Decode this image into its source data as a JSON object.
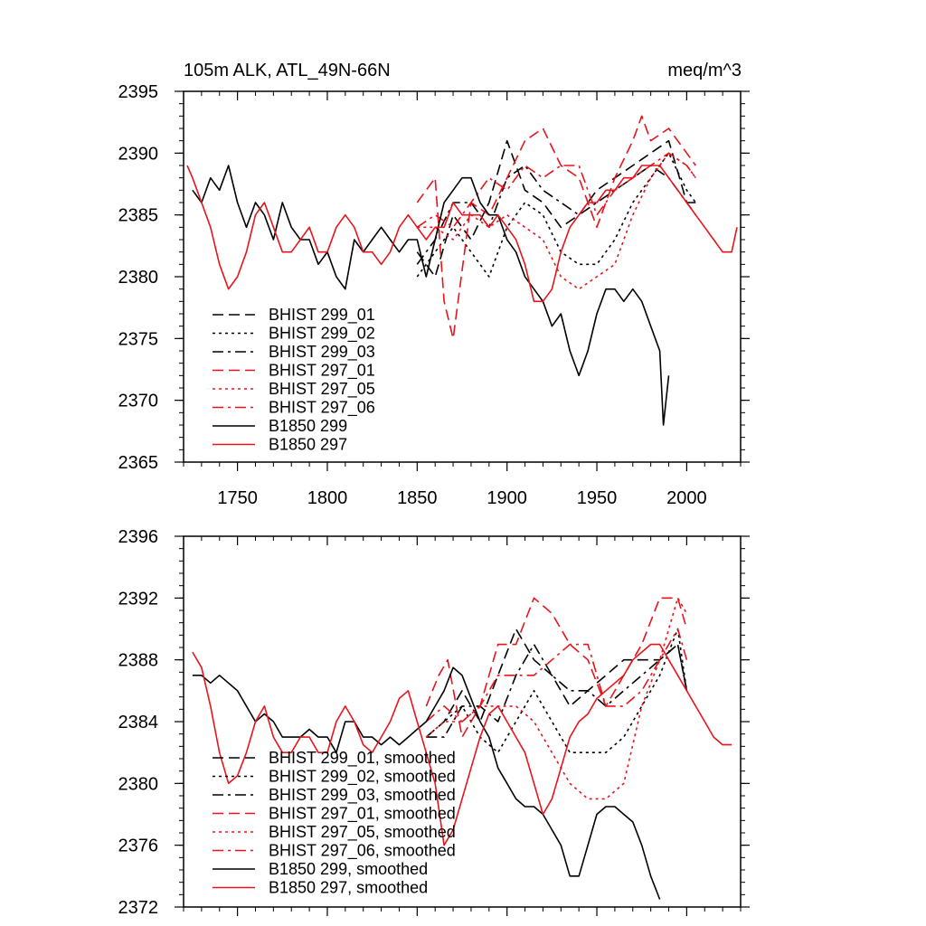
{
  "colors": {
    "black_series": "#000000",
    "red_series": "#e8141c"
  },
  "chart_data": [
    {
      "type": "line",
      "title": "105m ALK, ATL_49N-66N",
      "units": "meq/m^3",
      "xlim": [
        1720,
        2030
      ],
      "ylim": [
        2365,
        2395
      ],
      "x_ticks": [
        1750,
        1800,
        1850,
        1900,
        1950,
        2000
      ],
      "y_ticks": [
        2365,
        2370,
        2375,
        2380,
        2385,
        2390,
        2395
      ],
      "tick_labels_x": [
        "1750",
        "1800",
        "1850",
        "1900",
        "1950",
        "2000"
      ],
      "tick_labels_y": [
        "2365",
        "2370",
        "2375",
        "2380",
        "2385",
        "2390",
        "2395"
      ],
      "legend_position": "lower-left",
      "series": [
        {
          "name": "BHIST 299_01",
          "color": "black",
          "dash": "dash",
          "x": [
            1850,
            1860,
            1870,
            1880,
            1890,
            1900,
            1910,
            1920,
            1930,
            1940,
            1950,
            1960,
            1970,
            1980,
            1990,
            2000,
            2005
          ],
          "y": [
            2382,
            2380,
            2385,
            2383,
            2386,
            2391,
            2387,
            2386,
            2384,
            2385,
            2387,
            2388,
            2389,
            2390,
            2391,
            2386,
            2385
          ]
        },
        {
          "name": "BHIST 299_02",
          "color": "black",
          "dash": "dot",
          "x": [
            1850,
            1860,
            1870,
            1880,
            1890,
            1900,
            1910,
            1920,
            1930,
            1940,
            1950,
            1960,
            1970,
            1980,
            1990,
            2000,
            2005
          ],
          "y": [
            2380,
            2382,
            2384,
            2382,
            2380,
            2384,
            2386,
            2385,
            2382,
            2381,
            2381,
            2383,
            2386,
            2388,
            2390,
            2387,
            2386
          ]
        },
        {
          "name": "BHIST 299_03",
          "color": "black",
          "dash": "dashdot",
          "x": [
            1850,
            1860,
            1870,
            1880,
            1890,
            1900,
            1910,
            1920,
            1930,
            1940,
            1950,
            1960,
            1970,
            1980,
            1990,
            2000,
            2005
          ],
          "y": [
            2381,
            2383,
            2386,
            2386,
            2384,
            2388,
            2389,
            2387,
            2386,
            2385,
            2386,
            2387,
            2388,
            2389,
            2388,
            2386,
            2386
          ]
        },
        {
          "name": "BHIST 297_01",
          "color": "red",
          "dash": "dash",
          "x": [
            1850,
            1860,
            1865,
            1870,
            1880,
            1890,
            1900,
            1910,
            1920,
            1930,
            1940,
            1950,
            1960,
            1970,
            1975,
            1980,
            1990,
            2000,
            2005
          ],
          "y": [
            2386,
            2388,
            2378,
            2375,
            2386,
            2385,
            2388,
            2391,
            2392,
            2389,
            2388,
            2384,
            2388,
            2391,
            2393,
            2391,
            2392,
            2390,
            2389
          ]
        },
        {
          "name": "BHIST 297_05",
          "color": "red",
          "dash": "dot",
          "x": [
            1850,
            1860,
            1870,
            1880,
            1890,
            1900,
            1910,
            1920,
            1930,
            1940,
            1950,
            1960,
            1970,
            1980,
            1990,
            2000,
            2005
          ],
          "y": [
            2384,
            2384,
            2383,
            2385,
            2384,
            2385,
            2384,
            2383,
            2380,
            2379,
            2380,
            2381,
            2385,
            2388,
            2390,
            2389,
            2388
          ]
        },
        {
          "name": "BHIST 297_06",
          "color": "red",
          "dash": "dashdot",
          "x": [
            1850,
            1860,
            1870,
            1880,
            1890,
            1900,
            1910,
            1920,
            1930,
            1940,
            1950,
            1960,
            1970,
            1980,
            1990,
            2000,
            2005
          ],
          "y": [
            2384,
            2385,
            2384,
            2386,
            2388,
            2387,
            2389,
            2388,
            2389,
            2389,
            2385,
            2387,
            2388,
            2389,
            2390,
            2389,
            2388
          ]
        },
        {
          "name": "B1850 299",
          "color": "black",
          "dash": "solid",
          "x": [
            1725,
            1730,
            1735,
            1740,
            1745,
            1750,
            1755,
            1760,
            1765,
            1770,
            1775,
            1780,
            1785,
            1790,
            1795,
            1800,
            1805,
            1810,
            1815,
            1820,
            1825,
            1830,
            1835,
            1840,
            1845,
            1850,
            1855,
            1860,
            1865,
            1870,
            1875,
            1880,
            1885,
            1890,
            1895,
            1900,
            1905,
            1910,
            1915,
            1920,
            1925,
            1930,
            1935,
            1940,
            1945,
            1950,
            1955,
            1960,
            1965,
            1970,
            1975,
            1980,
            1985,
            1987,
            1990
          ],
          "y": [
            2387,
            2386,
            2388,
            2387,
            2389,
            2386,
            2384,
            2386,
            2385,
            2383,
            2386,
            2384,
            2383,
            2383,
            2381,
            2382,
            2380,
            2379,
            2383,
            2382,
            2383,
            2384,
            2383,
            2382,
            2383,
            2383,
            2380,
            2383,
            2386,
            2387,
            2388,
            2388,
            2386,
            2385,
            2385,
            2383,
            2382,
            2380,
            2379,
            2378,
            2376,
            2377,
            2374,
            2372,
            2374,
            2377,
            2379,
            2379,
            2378,
            2379,
            2378,
            2376,
            2374,
            2368,
            2372
          ]
        },
        {
          "name": "B1850 297",
          "color": "red",
          "dash": "solid",
          "x": [
            1722,
            1725,
            1730,
            1735,
            1740,
            1745,
            1750,
            1755,
            1760,
            1765,
            1770,
            1775,
            1780,
            1785,
            1790,
            1795,
            1800,
            1805,
            1810,
            1815,
            1820,
            1825,
            1830,
            1835,
            1840,
            1845,
            1850,
            1855,
            1860,
            1865,
            1870,
            1875,
            1880,
            1885,
            1890,
            1895,
            1900,
            1905,
            1910,
            1915,
            1920,
            1925,
            1930,
            1935,
            1940,
            1945,
            1950,
            1955,
            1960,
            1965,
            1970,
            1975,
            1980,
            1985,
            1990,
            1995,
            2000,
            2005,
            2010,
            2015,
            2020,
            2025,
            2028
          ],
          "y": [
            2389,
            2388,
            2386,
            2384,
            2381,
            2379,
            2380,
            2382,
            2385,
            2386,
            2384,
            2382,
            2382,
            2383,
            2384,
            2382,
            2382,
            2384,
            2385,
            2384,
            2382,
            2382,
            2381,
            2382,
            2384,
            2385,
            2384,
            2383,
            2384,
            2384,
            2386,
            2385,
            2385,
            2385,
            2384,
            2385,
            2384,
            2383,
            2381,
            2378,
            2378,
            2379,
            2382,
            2384,
            2385,
            2386,
            2386,
            2387,
            2387,
            2388,
            2388,
            2389,
            2389,
            2389,
            2388,
            2387,
            2386,
            2385,
            2384,
            2383,
            2382,
            2382,
            2384
          ]
        }
      ]
    },
    {
      "type": "line",
      "title": "",
      "xlim": [
        1720,
        2030
      ],
      "ylim": [
        2372,
        2396
      ],
      "x_ticks": [
        1750,
        1800,
        1850,
        1900,
        1950,
        2000
      ],
      "y_ticks": [
        2372,
        2376,
        2380,
        2384,
        2388,
        2392,
        2396
      ],
      "tick_labels_x": [],
      "tick_labels_y": [
        "2372",
        "2376",
        "2380",
        "2384",
        "2388",
        "2392",
        "2396"
      ],
      "legend_position": "lower-left",
      "series": [
        {
          "name": "BHIST 299_01, smoothed",
          "color": "black",
          "dash": "dash",
          "x": [
            1855,
            1865,
            1875,
            1885,
            1895,
            1905,
            1915,
            1925,
            1935,
            1945,
            1955,
            1965,
            1975,
            1985,
            1995,
            2000
          ],
          "y": [
            2383,
            2384,
            2386,
            2384,
            2387,
            2390,
            2388,
            2387,
            2385,
            2386,
            2387,
            2388,
            2388,
            2388,
            2389,
            2386
          ]
        },
        {
          "name": "BHIST 299_02, smoothed",
          "color": "black",
          "dash": "dot",
          "x": [
            1855,
            1865,
            1875,
            1885,
            1895,
            1905,
            1915,
            1925,
            1935,
            1945,
            1955,
            1965,
            1975,
            1985,
            1995,
            2000
          ],
          "y": [
            2383,
            2384,
            2385,
            2383,
            2382,
            2384,
            2386,
            2384,
            2382,
            2382,
            2382,
            2383,
            2385,
            2387,
            2390,
            2386
          ]
        },
        {
          "name": "BHIST 299_03, smoothed",
          "color": "black",
          "dash": "dashdot",
          "x": [
            1855,
            1865,
            1875,
            1885,
            1895,
            1905,
            1915,
            1925,
            1935,
            1945,
            1955,
            1965,
            1975,
            1985,
            1995,
            2000
          ],
          "y": [
            2383,
            2383,
            2385,
            2385,
            2384,
            2387,
            2389,
            2387,
            2386,
            2386,
            2385,
            2386,
            2387,
            2388,
            2389,
            2386
          ]
        },
        {
          "name": "BHIST 297_01, smoothed",
          "color": "red",
          "dash": "dash",
          "x": [
            1855,
            1862,
            1867,
            1875,
            1885,
            1895,
            1905,
            1915,
            1925,
            1935,
            1945,
            1955,
            1965,
            1975,
            1985,
            1995,
            2000
          ],
          "y": [
            2385,
            2387,
            2388,
            2383,
            2385,
            2389,
            2389,
            2392,
            2391,
            2389,
            2388,
            2385,
            2387,
            2389,
            2392,
            2392,
            2390
          ]
        },
        {
          "name": "BHIST 297_05, smoothed",
          "color": "red",
          "dash": "dot",
          "x": [
            1855,
            1865,
            1875,
            1885,
            1895,
            1905,
            1915,
            1925,
            1935,
            1945,
            1955,
            1965,
            1975,
            1985,
            1995,
            2000
          ],
          "y": [
            2383,
            2384,
            2384,
            2385,
            2385,
            2385,
            2384,
            2382,
            2380,
            2379,
            2379,
            2380,
            2385,
            2388,
            2392,
            2391
          ]
        },
        {
          "name": "BHIST 297_06, smoothed",
          "color": "red",
          "dash": "dashdot",
          "x": [
            1855,
            1865,
            1875,
            1885,
            1895,
            1905,
            1915,
            1925,
            1935,
            1945,
            1955,
            1965,
            1975,
            1985,
            1995,
            2000
          ],
          "y": [
            2384,
            2385,
            2384,
            2385,
            2387,
            2387,
            2387,
            2388,
            2389,
            2389,
            2385,
            2385,
            2386,
            2388,
            2390,
            2388
          ]
        },
        {
          "name": "B1850 299, smoothed",
          "color": "black",
          "dash": "solid",
          "x": [
            1725,
            1730,
            1735,
            1740,
            1745,
            1750,
            1755,
            1760,
            1765,
            1770,
            1775,
            1780,
            1785,
            1790,
            1795,
            1800,
            1805,
            1810,
            1815,
            1820,
            1825,
            1830,
            1835,
            1840,
            1845,
            1850,
            1855,
            1860,
            1865,
            1870,
            1875,
            1880,
            1885,
            1890,
            1895,
            1900,
            1905,
            1910,
            1915,
            1920,
            1925,
            1930,
            1935,
            1940,
            1945,
            1950,
            1955,
            1960,
            1965,
            1970,
            1975,
            1980,
            1985
          ],
          "y": [
            2387,
            2387,
            2386.5,
            2387,
            2386.5,
            2386,
            2385,
            2384,
            2384.5,
            2384,
            2383,
            2383,
            2383,
            2383.5,
            2383,
            2383,
            2382,
            2384,
            2384,
            2383,
            2383,
            2382.5,
            2383,
            2382.5,
            2383,
            2383.5,
            2384,
            2385,
            2386,
            2387.5,
            2387,
            2385.5,
            2384,
            2383,
            2381,
            2380,
            2379,
            2378.5,
            2378.5,
            2378,
            2377,
            2376,
            2374,
            2374,
            2376,
            2378,
            2378.5,
            2378.5,
            2378,
            2377.5,
            2376,
            2374,
            2372.5
          ]
        },
        {
          "name": "B1850 297, smoothed",
          "color": "red",
          "dash": "solid",
          "x": [
            1725,
            1730,
            1735,
            1740,
            1745,
            1750,
            1755,
            1760,
            1765,
            1770,
            1775,
            1780,
            1785,
            1790,
            1795,
            1800,
            1805,
            1810,
            1815,
            1820,
            1825,
            1830,
            1835,
            1840,
            1845,
            1850,
            1855,
            1860,
            1865,
            1870,
            1875,
            1880,
            1885,
            1890,
            1895,
            1900,
            1905,
            1910,
            1915,
            1920,
            1925,
            1930,
            1935,
            1940,
            1945,
            1950,
            1955,
            1960,
            1965,
            1970,
            1975,
            1980,
            1985,
            1990,
            1995,
            2000,
            2005,
            2010,
            2015,
            2020,
            2025
          ],
          "y": [
            2388.5,
            2387.5,
            2385,
            2382,
            2380,
            2380.5,
            2382,
            2384,
            2385,
            2383,
            2382,
            2382,
            2383,
            2383,
            2382,
            2382,
            2384,
            2385,
            2384,
            2382.5,
            2382,
            2383,
            2384,
            2385.5,
            2386,
            2384,
            2382,
            2380,
            2376,
            2377,
            2379,
            2381,
            2383,
            2384.5,
            2385,
            2384,
            2383,
            2382,
            2380,
            2378,
            2379,
            2381,
            2383,
            2384,
            2384.5,
            2385.5,
            2386,
            2386.5,
            2387,
            2388,
            2388.5,
            2389,
            2389,
            2388,
            2387,
            2386,
            2385,
            2384,
            2383,
            2382.5,
            2382.5
          ]
        }
      ]
    }
  ]
}
